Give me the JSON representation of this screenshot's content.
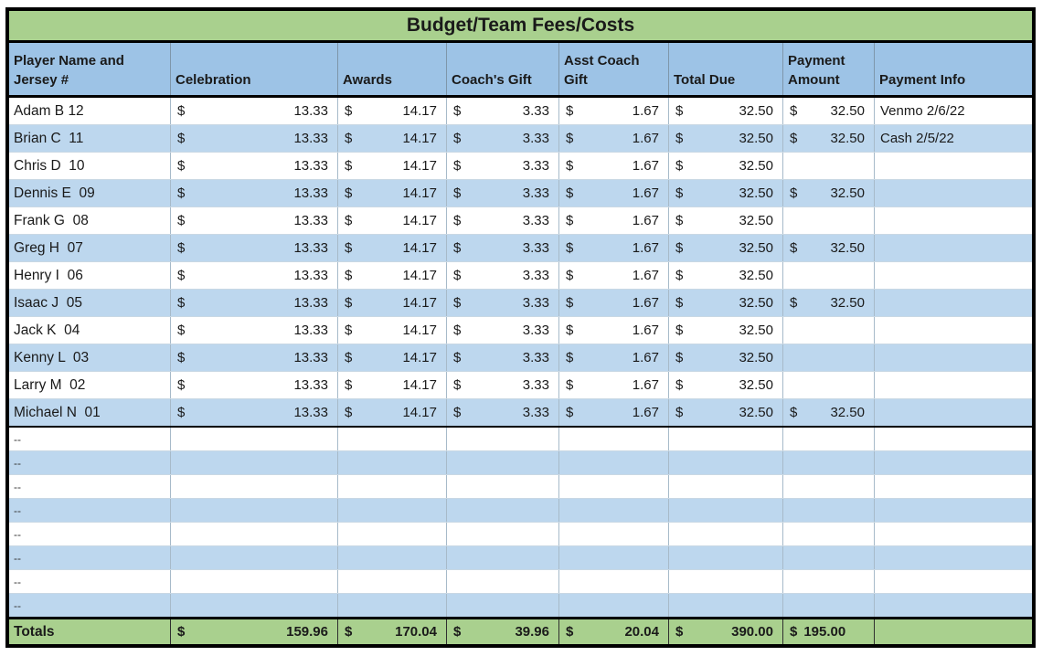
{
  "title": "Budget/Team Fees/Costs",
  "currency_symbol": "$",
  "columns": {
    "player": "Player Name and\nJersey #",
    "celebration": "Celebration",
    "awards": "Awards",
    "coachs_gift": "Coach's Gift",
    "asst_coach_gift": "Asst Coach\nGift",
    "total_due": "Total Due",
    "payment_amount": "Payment\nAmount",
    "payment_info": "Payment Info"
  },
  "rows": [
    {
      "name": "Adam B 12",
      "cur": "$",
      "celebration": "13.33",
      "awards": "14.17",
      "coachs_gift": "3.33",
      "asst_coach_gift": "1.67",
      "total_due": "32.50",
      "pcur": "$",
      "payment_amount": "32.50",
      "payment_info": "Venmo 2/6/22"
    },
    {
      "name": "Brian C  11",
      "cur": "$",
      "celebration": "13.33",
      "awards": "14.17",
      "coachs_gift": "3.33",
      "asst_coach_gift": "1.67",
      "total_due": "32.50",
      "pcur": "$",
      "payment_amount": "32.50",
      "payment_info": "Cash 2/5/22"
    },
    {
      "name": "Chris D  10",
      "cur": "$",
      "celebration": "13.33",
      "awards": "14.17",
      "coachs_gift": "3.33",
      "asst_coach_gift": "1.67",
      "total_due": "32.50",
      "pcur": "",
      "payment_amount": "",
      "payment_info": ""
    },
    {
      "name": "Dennis E  09",
      "cur": "$",
      "celebration": "13.33",
      "awards": "14.17",
      "coachs_gift": "3.33",
      "asst_coach_gift": "1.67",
      "total_due": "32.50",
      "pcur": "$",
      "payment_amount": "32.50",
      "payment_info": ""
    },
    {
      "name": "Frank G  08",
      "cur": "$",
      "celebration": "13.33",
      "awards": "14.17",
      "coachs_gift": "3.33",
      "asst_coach_gift": "1.67",
      "total_due": "32.50",
      "pcur": "",
      "payment_amount": "",
      "payment_info": ""
    },
    {
      "name": "Greg H  07",
      "cur": "$",
      "celebration": "13.33",
      "awards": "14.17",
      "coachs_gift": "3.33",
      "asst_coach_gift": "1.67",
      "total_due": "32.50",
      "pcur": "$",
      "payment_amount": "32.50",
      "payment_info": ""
    },
    {
      "name": "Henry I  06",
      "cur": "$",
      "celebration": "13.33",
      "awards": "14.17",
      "coachs_gift": "3.33",
      "asst_coach_gift": "1.67",
      "total_due": "32.50",
      "pcur": "",
      "payment_amount": "",
      "payment_info": ""
    },
    {
      "name": "Isaac J  05",
      "cur": "$",
      "celebration": "13.33",
      "awards": "14.17",
      "coachs_gift": "3.33",
      "asst_coach_gift": "1.67",
      "total_due": "32.50",
      "pcur": "$",
      "payment_amount": "32.50",
      "payment_info": ""
    },
    {
      "name": "Jack K  04",
      "cur": "$",
      "celebration": "13.33",
      "awards": "14.17",
      "coachs_gift": "3.33",
      "asst_coach_gift": "1.67",
      "total_due": "32.50",
      "pcur": "",
      "payment_amount": "",
      "payment_info": ""
    },
    {
      "name": "Kenny L  03",
      "cur": "$",
      "celebration": "13.33",
      "awards": "14.17",
      "coachs_gift": "3.33",
      "asst_coach_gift": "1.67",
      "total_due": "32.50",
      "pcur": "",
      "payment_amount": "",
      "payment_info": ""
    },
    {
      "name": "Larry M  02",
      "cur": "$",
      "celebration": "13.33",
      "awards": "14.17",
      "coachs_gift": "3.33",
      "asst_coach_gift": "1.67",
      "total_due": "32.50",
      "pcur": "",
      "payment_amount": "",
      "payment_info": ""
    },
    {
      "name": "Michael N  01",
      "cur": "$",
      "celebration": "13.33",
      "awards": "14.17",
      "coachs_gift": "3.33",
      "asst_coach_gift": "1.67",
      "total_due": "32.50",
      "pcur": "$",
      "payment_amount": "32.50",
      "payment_info": ""
    },
    {
      "name": "--",
      "cur": "",
      "celebration": "",
      "awards": "",
      "coachs_gift": "",
      "asst_coach_gift": "",
      "total_due": "",
      "pcur": "",
      "payment_amount": "",
      "payment_info": ""
    },
    {
      "name": "--",
      "cur": "",
      "celebration": "",
      "awards": "",
      "coachs_gift": "",
      "asst_coach_gift": "",
      "total_due": "",
      "pcur": "",
      "payment_amount": "",
      "payment_info": ""
    },
    {
      "name": "--",
      "cur": "",
      "celebration": "",
      "awards": "",
      "coachs_gift": "",
      "asst_coach_gift": "",
      "total_due": "",
      "pcur": "",
      "payment_amount": "",
      "payment_info": ""
    },
    {
      "name": "--",
      "cur": "",
      "celebration": "",
      "awards": "",
      "coachs_gift": "",
      "asst_coach_gift": "",
      "total_due": "",
      "pcur": "",
      "payment_amount": "",
      "payment_info": ""
    },
    {
      "name": "--",
      "cur": "",
      "celebration": "",
      "awards": "",
      "coachs_gift": "",
      "asst_coach_gift": "",
      "total_due": "",
      "pcur": "",
      "payment_amount": "",
      "payment_info": ""
    },
    {
      "name": "--",
      "cur": "",
      "celebration": "",
      "awards": "",
      "coachs_gift": "",
      "asst_coach_gift": "",
      "total_due": "",
      "pcur": "",
      "payment_amount": "",
      "payment_info": ""
    },
    {
      "name": "--",
      "cur": "",
      "celebration": "",
      "awards": "",
      "coachs_gift": "",
      "asst_coach_gift": "",
      "total_due": "",
      "pcur": "",
      "payment_amount": "",
      "payment_info": ""
    },
    {
      "name": "--",
      "cur": "",
      "celebration": "",
      "awards": "",
      "coachs_gift": "",
      "asst_coach_gift": "",
      "total_due": "",
      "pcur": "",
      "payment_amount": "",
      "payment_info": ""
    }
  ],
  "totals": {
    "label": "Totals",
    "celebration": "159.96",
    "awards": "170.04",
    "coachs_gift": "39.96",
    "asst_coach_gift": "20.04",
    "total_due": "390.00",
    "payment_amount": "195.00",
    "payment_info": ""
  },
  "colors": {
    "title_bg": "#a9d08e",
    "header_bg": "#9dc3e6",
    "band_bg": "#bdd7ee",
    "totals_bg": "#a9d08e",
    "border": "#000000"
  }
}
